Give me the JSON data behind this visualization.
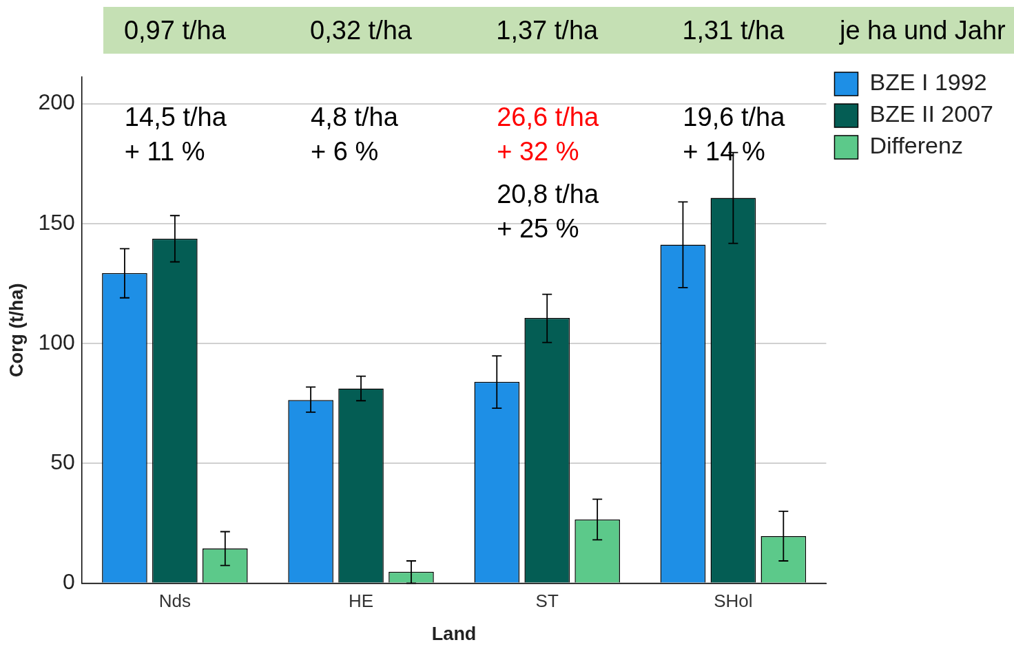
{
  "chart_data": {
    "type": "bar",
    "xlabel": "Land",
    "ylabel": "Corg (t/ha)",
    "categories": [
      "Nds",
      "HE",
      "ST",
      "SHol"
    ],
    "series": [
      {
        "name": "BZE I 1992",
        "color": "#1e8fe6",
        "values": [
          129.3,
          76.4,
          84,
          141.2
        ],
        "errors": [
          [
            119,
            139.5
          ],
          [
            71.3,
            81.8
          ],
          [
            73,
            94.8
          ],
          [
            123.3,
            159
          ]
        ]
      },
      {
        "name": "BZE II 2007",
        "color": "#045d54",
        "values": [
          143.7,
          81.2,
          110.6,
          160.7
        ],
        "errors": [
          [
            134,
            153.3
          ],
          [
            76.1,
            86.3
          ],
          [
            100.4,
            120.5
          ],
          [
            141.7,
            179.6
          ]
        ]
      },
      {
        "name": "Differenz",
        "color": "#5cc98a",
        "values": [
          14.5,
          4.8,
          26.6,
          19.6
        ],
        "errors": [
          [
            7.4,
            21.5
          ],
          [
            0,
            9.3
          ],
          [
            18.1,
            35
          ],
          [
            9.3,
            30
          ]
        ]
      }
    ],
    "ylim": [
      0,
      211
    ],
    "yticks": [
      0,
      50,
      100,
      150,
      200
    ],
    "grid": "y",
    "legend": "top right",
    "annotations": [
      "0,97 t/ha",
      "0,32 t/ha",
      "1,37 t/ha",
      "1,31 t/ha",
      "je ha und Jahr",
      "14,5 t/ha\n+ 11 %",
      "4,8 t/ha\n+ 6 %",
      "26,6 t/ha\n+ 32 %",
      "20,8 t/ha\n+ 25 %",
      "19,6 t/ha\n+ 14 %"
    ]
  }
}
